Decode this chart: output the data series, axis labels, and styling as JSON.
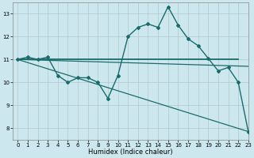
{
  "title": "",
  "xlabel": "Humidex (Indice chaleur)",
  "xlim": [
    -0.5,
    23
  ],
  "ylim": [
    7.5,
    13.5
  ],
  "yticks": [
    8,
    9,
    10,
    11,
    12,
    13
  ],
  "xticks": [
    0,
    1,
    2,
    3,
    4,
    5,
    6,
    7,
    8,
    9,
    10,
    11,
    12,
    13,
    14,
    15,
    16,
    17,
    18,
    19,
    20,
    21,
    22,
    23
  ],
  "bg_color": "#cce8ee",
  "line_color": "#1a6b6b",
  "grid_color": "#b0c8cc",
  "line1_x": [
    0,
    1,
    2,
    3,
    4,
    5,
    6,
    7,
    8,
    9,
    10,
    11,
    12,
    13,
    14,
    15,
    16,
    17,
    18,
    19,
    20,
    21,
    22,
    23
  ],
  "line1_y": [
    11.0,
    11.1,
    11.0,
    11.1,
    10.3,
    10.0,
    10.2,
    10.2,
    10.0,
    9.3,
    10.3,
    12.0,
    12.4,
    12.55,
    12.4,
    13.3,
    12.5,
    11.9,
    11.6,
    11.05,
    10.5,
    10.65,
    10.0,
    7.85
  ],
  "line2_x": [
    0,
    10,
    15,
    22
  ],
  "line2_y": [
    11.0,
    11.0,
    11.0,
    11.0
  ],
  "line3_x": [
    0,
    23
  ],
  "line3_y": [
    11.0,
    10.7
  ],
  "line4_x": [
    0,
    23
  ],
  "line4_y": [
    11.0,
    7.85
  ]
}
